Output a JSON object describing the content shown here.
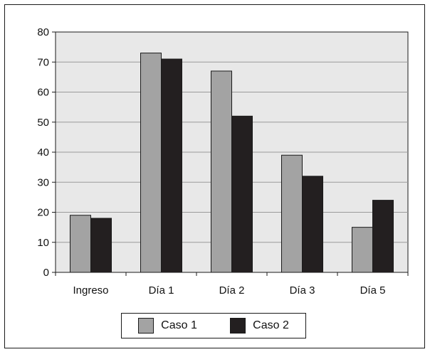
{
  "chart_data": {
    "type": "bar",
    "categories": [
      "Ingreso",
      "Día 1",
      "Día 2",
      "Día 3",
      "Día 5"
    ],
    "series": [
      {
        "name": "Caso 1",
        "values": [
          19,
          73,
          67,
          39,
          15
        ],
        "color": "#a3a3a3"
      },
      {
        "name": "Caso 2",
        "values": [
          18,
          71,
          52,
          32,
          24
        ],
        "color": "#231f20"
      }
    ],
    "title": "",
    "xlabel": "",
    "ylabel": "",
    "ylim": [
      0,
      80
    ],
    "yticks": [
      "0",
      "10",
      "20",
      "30",
      "40",
      "50",
      "60",
      "70",
      "80"
    ],
    "grid": true,
    "plot_background": "#e8e8e8",
    "legend_position": "bottom"
  }
}
